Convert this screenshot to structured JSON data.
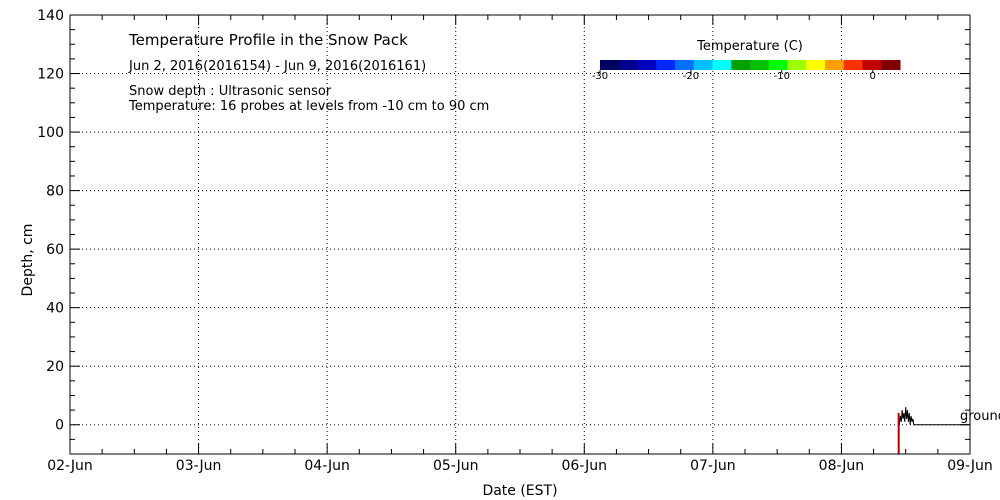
{
  "chart_data": {
    "type": "line",
    "title": "Temperature Profile in the Snow Pack",
    "subtitle": "Jun  2, 2016(2016154) - Jun  9, 2016(2016161)",
    "notes": [
      "Snow depth : Ultrasonic sensor",
      "Temperature: 16 probes at levels from -10 cm to 90 cm"
    ],
    "xlabel": "Date (EST)",
    "ylabel": "Depth, cm",
    "xlim": [
      "2016-06-02",
      "2016-06-09"
    ],
    "ylim": [
      -10,
      140
    ],
    "x_ticks": [
      "02-Jun",
      "03-Jun",
      "04-Jun",
      "05-Jun",
      "06-Jun",
      "07-Jun",
      "08-Jun",
      "09-Jun"
    ],
    "y_ticks": [
      0,
      20,
      40,
      60,
      80,
      100,
      120,
      140
    ],
    "grid": true,
    "colorbar": {
      "title": "Temperature (C)",
      "min": -30,
      "max": 3,
      "tick_values": [
        -30,
        -20,
        -10,
        0
      ],
      "tick_labels": [
        "-30",
        "-20",
        "-10",
        "0"
      ],
      "colors": [
        "#000060",
        "#00008c",
        "#0000c0",
        "#0028ff",
        "#0070ff",
        "#00c0ff",
        "#00ffff",
        "#00a000",
        "#00c000",
        "#00ff00",
        "#a0ff00",
        "#ffff00",
        "#ffa000",
        "#ff3000",
        "#c00000",
        "#800000"
      ]
    },
    "annotation": "ground",
    "series": [
      {
        "color": "#000000",
        "x": [
          "2016-06-08 10:48",
          "2016-06-08 11:00",
          "2016-06-08 11:10",
          "2016-06-08 11:20",
          "2016-06-08 11:30",
          "2016-06-08 11:40",
          "2016-06-08 11:50",
          "2016-06-08 12:00",
          "2016-06-08 12:10",
          "2016-06-08 12:20",
          "2016-06-08 12:30",
          "2016-06-08 12:40",
          "2016-06-08 12:50",
          "2016-06-08 13:00",
          "2016-06-08 13:10",
          "2016-06-08 13:20",
          "2016-06-08 13:30",
          "2016-06-08 14:00",
          "2016-06-08 16:00",
          "2016-06-08 18:00",
          "2016-06-08 20:00",
          "2016-06-08 22:00",
          "2016-06-09 00:00"
        ],
        "y": [
          0,
          3,
          1,
          5,
          2,
          4,
          1,
          6,
          2,
          5,
          1,
          4,
          0,
          3,
          1,
          2,
          0,
          0,
          0,
          0,
          0,
          0,
          0
        ]
      }
    ],
    "bars": [
      {
        "color": "#b00000",
        "x": "2016-06-08 10:30",
        "y0": -10,
        "y1": 4
      }
    ]
  }
}
